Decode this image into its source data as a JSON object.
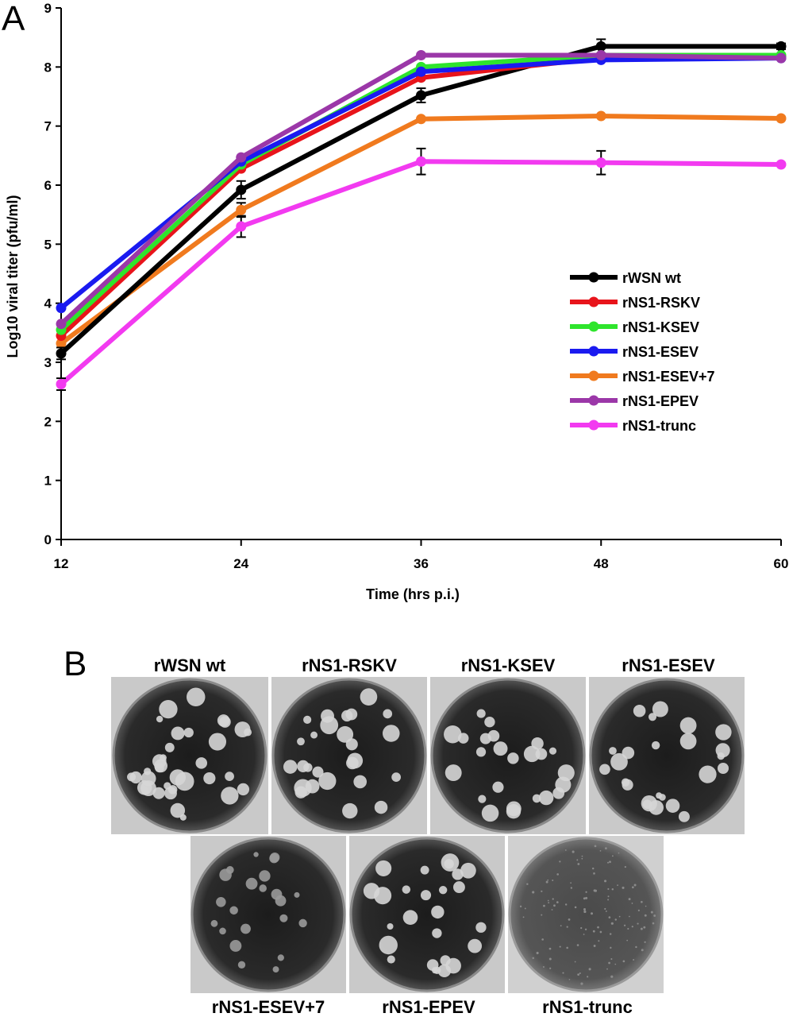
{
  "panel_a_letter": "A",
  "panel_b_letter": "B",
  "chart_data": {
    "type": "line",
    "title": "",
    "xlabel": "Time (hrs p.i.)",
    "ylabel": "Log10 viral titer (pfu/ml)",
    "x": [
      12,
      24,
      36,
      48,
      60
    ],
    "xlim": [
      12,
      60
    ],
    "ylim": [
      0,
      9
    ],
    "x_ticks": [
      "12",
      "24",
      "36",
      "48",
      "60"
    ],
    "y_ticks": [
      "0",
      "1",
      "2",
      "3",
      "4",
      "5",
      "6",
      "7",
      "8",
      "9"
    ],
    "grid": false,
    "legend_position": "right",
    "series": [
      {
        "name": "rWSN wt",
        "color": "#000000",
        "values": [
          3.15,
          5.92,
          7.52,
          8.35,
          8.35
        ],
        "errors": [
          0.1,
          0.15,
          0.12,
          0.12,
          0.05
        ]
      },
      {
        "name": "rNS1-RSKV",
        "color": "#e8141b",
        "values": [
          3.45,
          6.28,
          7.82,
          8.15,
          8.18
        ],
        "errors": [
          0,
          0,
          0,
          0,
          0
        ]
      },
      {
        "name": "rNS1-KSEV",
        "color": "#2ee52c",
        "values": [
          3.55,
          6.35,
          8.0,
          8.2,
          8.2
        ],
        "errors": [
          0,
          0,
          0,
          0,
          0
        ]
      },
      {
        "name": "rNS1-ESEV",
        "color": "#1a1af0",
        "values": [
          3.92,
          6.4,
          7.92,
          8.12,
          8.15
        ],
        "errors": [
          0,
          0,
          0,
          0,
          0
        ]
      },
      {
        "name": "rNS1-ESEV+7",
        "color": "#f07a1e",
        "values": [
          3.32,
          5.58,
          7.12,
          7.17,
          7.13
        ],
        "errors": [
          0,
          0.12,
          0,
          0,
          0
        ]
      },
      {
        "name": "rNS1-EPEV",
        "color": "#9b37a8",
        "values": [
          3.65,
          6.47,
          8.2,
          8.2,
          8.15
        ],
        "errors": [
          0,
          0,
          0,
          0,
          0
        ]
      },
      {
        "name": "rNS1-trunc",
        "color": "#f23af0",
        "values": [
          2.63,
          5.3,
          6.4,
          6.38,
          6.35
        ],
        "errors": [
          0.1,
          0.18,
          0.22,
          0.2,
          0
        ]
      }
    ]
  },
  "plates": {
    "top_row": [
      "rWSN wt",
      "rNS1-RSKV",
      "rNS1-KSEV",
      "rNS1-ESEV"
    ],
    "bottom_row": [
      "rNS1-ESEV+7",
      "rNS1-EPEV",
      "rNS1-trunc"
    ]
  }
}
